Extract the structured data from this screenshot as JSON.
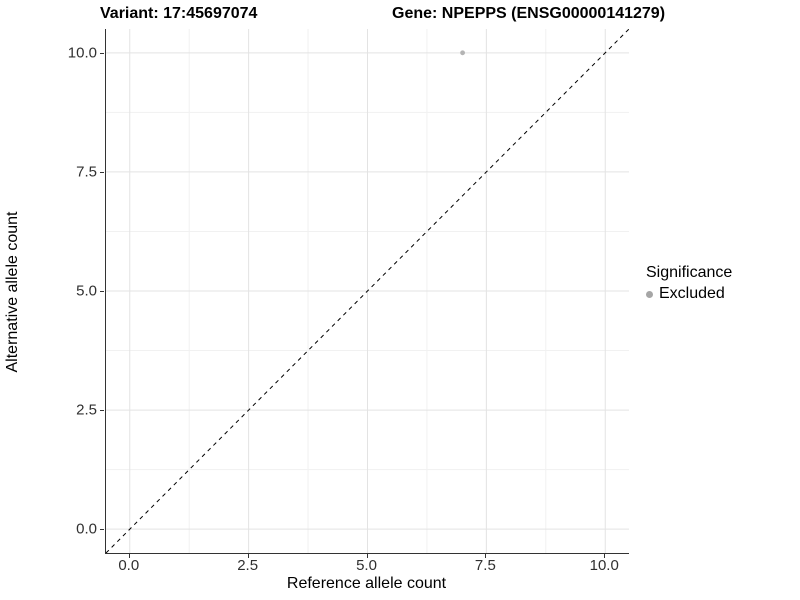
{
  "titles": {
    "variant": "Variant: 17:45697074",
    "gene": "Gene: NPEPPS (ENSG00000141279)"
  },
  "chart_data": {
    "type": "scatter",
    "xlabel": "Reference allele count",
    "ylabel": "Alternative allele count",
    "xlim": [
      -0.5,
      10.5
    ],
    "ylim": [
      -0.5,
      10.5
    ],
    "x_ticks": [
      0.0,
      2.5,
      5.0,
      7.5,
      10.0
    ],
    "y_ticks": [
      0.0,
      2.5,
      5.0,
      7.5,
      10.0
    ],
    "x_tick_labels": [
      "0.0",
      "2.5",
      "5.0",
      "7.5",
      "10.0"
    ],
    "y_tick_labels": [
      "0.0",
      "2.5",
      "5.0",
      "7.5",
      "10.0"
    ],
    "x_minor_ticks": [
      1.25,
      3.75,
      6.25,
      8.75
    ],
    "y_minor_ticks": [
      1.25,
      3.75,
      6.25,
      8.75
    ],
    "grid": true,
    "legend_position": "right",
    "series": [
      {
        "name": "Excluded",
        "color": "#b4b4b4",
        "points": [
          {
            "x": 7,
            "y": 10
          }
        ]
      }
    ],
    "reference_line": {
      "type": "identity",
      "description": "y = x diagonal",
      "style": "dashed",
      "color": "#000000"
    },
    "legend": {
      "title": "Significance",
      "items": [
        {
          "label": "Excluded",
          "marker": "circle",
          "color": "#a6a6a6"
        }
      ]
    }
  },
  "colors": {
    "background": "#ffffff",
    "axis_line": "#333333",
    "tick_text": "#303030",
    "title_text": "#000000",
    "grid_major": "#e3e3e3",
    "grid_minor": "#f1f1f1",
    "point": "#b4b4b4",
    "legend_marker": "#a6a6a6",
    "reference_line": "#000000"
  }
}
